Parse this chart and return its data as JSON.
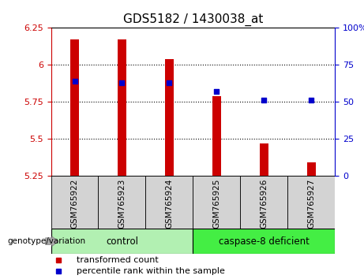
{
  "title": "GDS5182 / 1430038_at",
  "samples": [
    "GSM765922",
    "GSM765923",
    "GSM765924",
    "GSM765925",
    "GSM765926",
    "GSM765927"
  ],
  "transformed_count": [
    6.17,
    6.17,
    6.04,
    5.79,
    5.47,
    5.34
  ],
  "percentile_rank": [
    64,
    63,
    63,
    57,
    51,
    51
  ],
  "ylim_left": [
    5.25,
    6.25
  ],
  "ylim_right": [
    0,
    100
  ],
  "yticks_left": [
    5.25,
    5.5,
    5.75,
    6.0,
    6.25
  ],
  "ytick_labels_left": [
    "5.25",
    "5.5",
    "5.75",
    "6",
    "6.25"
  ],
  "yticks_right": [
    0,
    25,
    50,
    75,
    100
  ],
  "ytick_labels_right": [
    "0",
    "25",
    "50",
    "75",
    "100%"
  ],
  "bar_color": "#cc0000",
  "dot_color": "#0000cc",
  "bar_bottom": 5.25,
  "bar_width": 0.18,
  "groups": [
    {
      "label": "control",
      "indices": [
        0,
        1,
        2
      ],
      "facecolor": "#b2f0b2",
      "edgecolor": "#33aa33"
    },
    {
      "label": "caspase-8 deficient",
      "indices": [
        3,
        4,
        5
      ],
      "facecolor": "#44ee44",
      "edgecolor": "#33aa33"
    }
  ],
  "legend_items": [
    {
      "label": "transformed count",
      "color": "#cc0000",
      "marker": "s"
    },
    {
      "label": "percentile rank within the sample",
      "color": "#0000cc",
      "marker": "s"
    }
  ],
  "grid_yticks": [
    5.5,
    5.75,
    6.0
  ],
  "xlabel_group": "genotype/variation",
  "plot_facecolor": "#ffffff",
  "xtick_bg_color": "#d3d3d3",
  "left_axis_color": "#cc0000",
  "right_axis_color": "#0000cc",
  "title_fontsize": 11,
  "tick_fontsize": 8,
  "legend_fontsize": 8
}
